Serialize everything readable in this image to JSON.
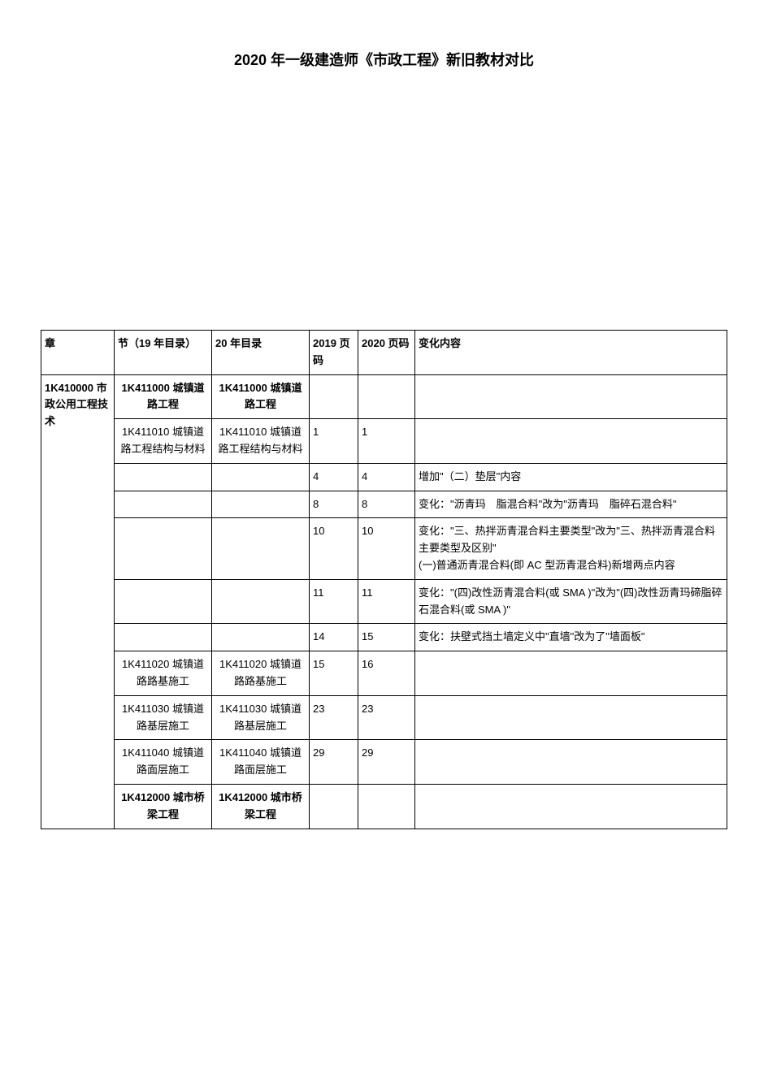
{
  "title": "2020 年一级建造师《市政工程》新旧教材对比",
  "headers": {
    "chapter": "章",
    "section19": "节（19 年目录）",
    "section20": "20 年目录",
    "page19": "2019 页码",
    "page20": "2020 页码",
    "change": "变化内容"
  },
  "chapter": {
    "code": "1K410000",
    "name": "市政公用工程技术"
  },
  "rows": [
    {
      "section19": "1K411000 城镇道路工程",
      "section20": "1K411000 城镇道路工程",
      "page19": "",
      "page20": "",
      "change": "",
      "bold": true,
      "center": true
    },
    {
      "section19": "1K411010 城镇道路工程结构与材料",
      "section20": "1K411010 城镇道路工程结构与材料",
      "page19": "1",
      "page20": "1",
      "change": "",
      "center": true
    },
    {
      "section19": "",
      "section20": "",
      "page19": "4",
      "page20": "4",
      "change": "增加\"（二）垫层\"内容"
    },
    {
      "section19": "",
      "section20": "",
      "page19": "8",
      "page20": "8",
      "change": "变化：\"沥青玛　脂混合料\"改为\"沥青玛　脂碎石混合料\""
    },
    {
      "section19": "",
      "section20": "",
      "page19": "10",
      "page20": "10",
      "change": "变化：\"三、热拌沥青混合料主要类型\"改为\"三、热拌沥青混合料主要类型及区别\"\n(一)普通沥青混合料(即 AC 型沥青混合料)新增两点内容"
    },
    {
      "section19": "",
      "section20": "",
      "page19": "11",
      "page20": "11",
      "change": "变化：\"(四)改性沥青混合料(或 SMA )\"改为\"(四)改性沥青玛碲脂碎石混合料(或 SMA )\""
    },
    {
      "section19": "",
      "section20": "",
      "page19": "14",
      "page20": "15",
      "change": "变化：扶壁式挡土墙定义中\"直墙\"改为了\"墙面板\""
    },
    {
      "section19": "1K411020 城镇道路路基施工",
      "section20": "1K411020 城镇道路路基施工",
      "page19": "15",
      "page20": "16",
      "change": "",
      "center": true
    },
    {
      "section19": "1K411030 城镇道路基层施工",
      "section20": "1K411030 城镇道路基层施工",
      "page19": "23",
      "page20": "23",
      "change": "",
      "center": true
    },
    {
      "section19": "1K411040 城镇道路面层施工",
      "section20": "1K411040 城镇道路面层施工",
      "page19": "29",
      "page20": "29",
      "change": "",
      "center": true
    },
    {
      "section19": "1K412000 城市桥梁工程",
      "section20": "1K412000 城市桥梁工程",
      "page19": "",
      "page20": "",
      "change": "",
      "bold": true,
      "center": true
    }
  ]
}
